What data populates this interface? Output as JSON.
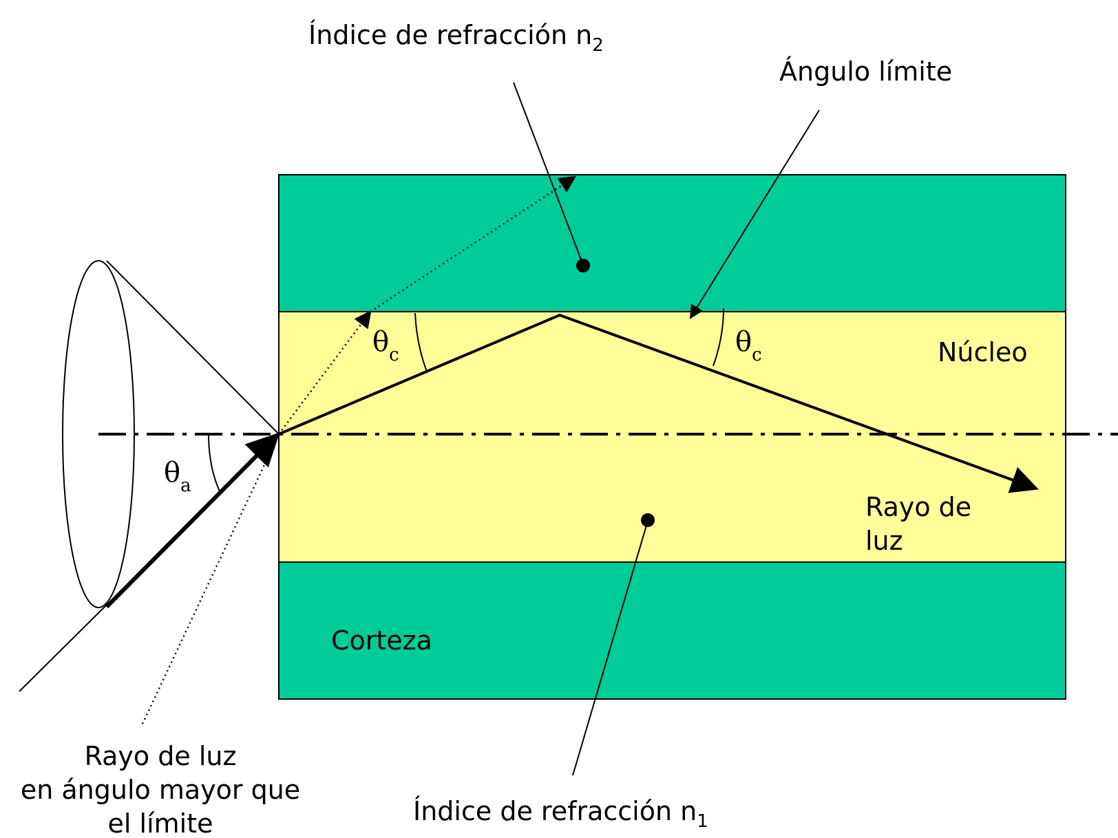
{
  "colors": {
    "cladding": "#00cc99",
    "core": "#ffff99",
    "line": "#000000",
    "background": "#ffffff"
  },
  "labels": {
    "n2_main": "Índice de refracción n",
    "n2_sub": "2",
    "critical_angle": "Ángulo límite",
    "core": "Núcleo",
    "cladding": "Corteza",
    "ray_line1": "Rayo de",
    "ray_line2": "luz",
    "n1_main": "Índice de refracción n",
    "n1_sub": "1",
    "outside_ray_line1": "Rayo de luz",
    "outside_ray_line2": "en ángulo mayor que",
    "outside_ray_line3": "el límite",
    "theta_symbol": "θ",
    "theta_c_sub": "c",
    "theta_a_sub": "a"
  }
}
